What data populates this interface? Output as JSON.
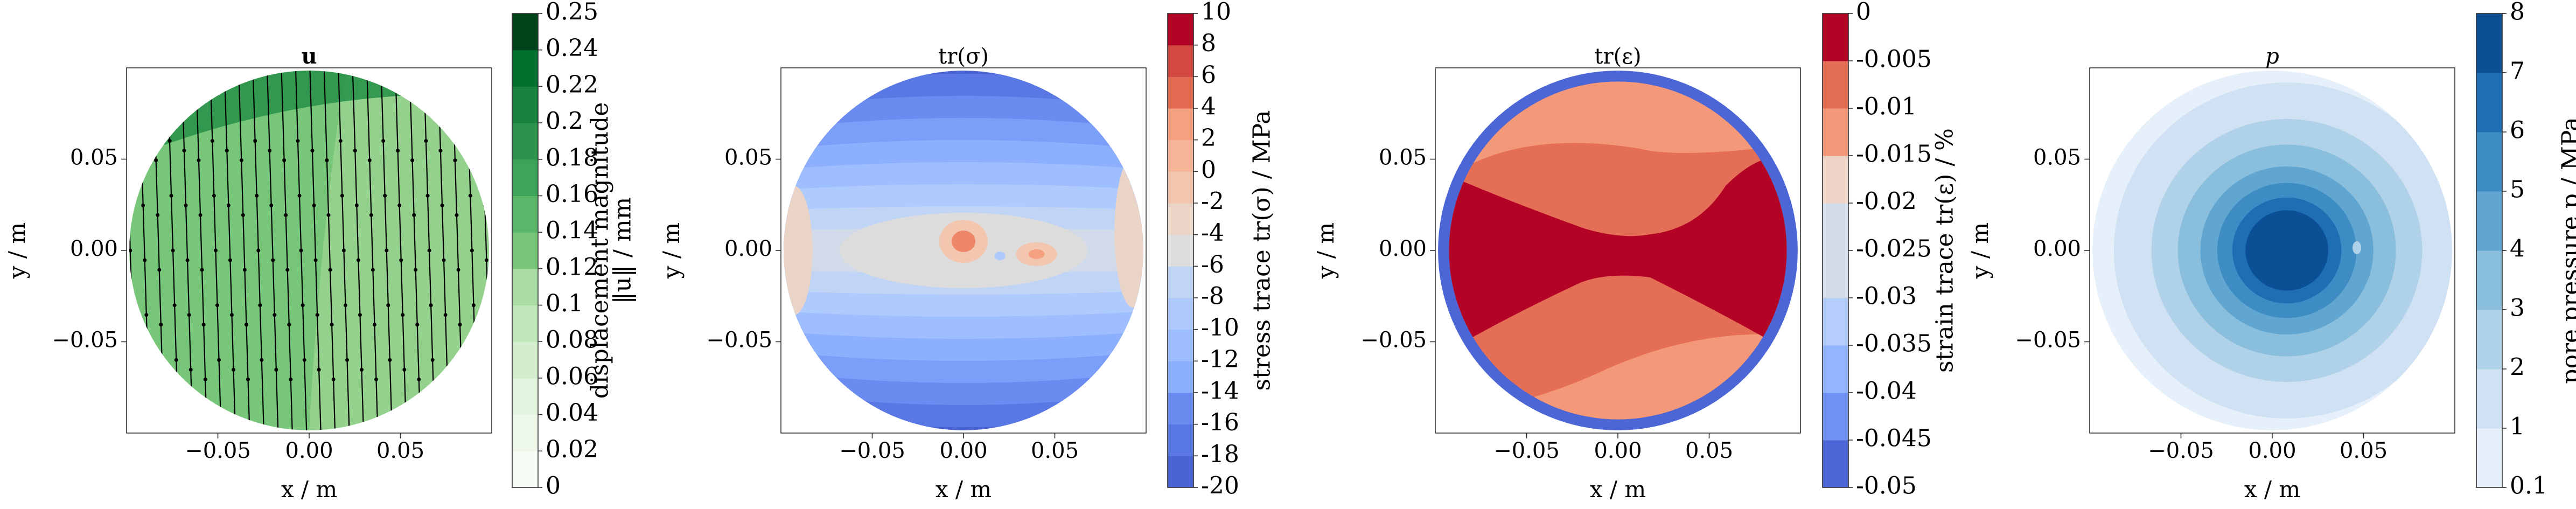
{
  "chart_data": [
    {
      "type": "heatmap",
      "title": "u",
      "xlabel": "x / m",
      "ylabel": "y / m",
      "xticks": [
        -0.05,
        0.0,
        0.05
      ],
      "xtick_labels": [
        "−0.05",
        "0.00",
        "0.05"
      ],
      "yticks": [
        0.05,
        0.0,
        -0.05
      ],
      "ytick_labels": [
        "0.05",
        "0.00",
        "−0.05"
      ],
      "xlim": [
        -0.1,
        0.1
      ],
      "ylim": [
        -0.1,
        0.1
      ],
      "colorbar": {
        "label": "displacement magnitude ‖u‖ / mm",
        "label_parts": [
          "displacement magnitude",
          "‖u‖ / mm"
        ],
        "levels": [
          0,
          0.02,
          0.04,
          0.06,
          0.08,
          0.1,
          0.12,
          0.14,
          0.16,
          0.18,
          0.2,
          0.22,
          0.24,
          0.25
        ],
        "tick_labels": [
          "0",
          "0.02",
          "0.04",
          "0.06",
          "0.08",
          "0.1",
          "0.12",
          "0.14",
          "0.16",
          "0.18",
          "0.2",
          "0.22",
          "0.24",
          "0.25"
        ],
        "colormap": "Greens",
        "colors": [
          "#f7fcf5",
          "#eef8ea",
          "#e3f4de",
          "#d3eecd",
          "#c0e6b9",
          "#aadda4",
          "#93d18d",
          "#78c67a",
          "#5cb66a",
          "#3fa459",
          "#2a924a",
          "#17813d",
          "#04702f",
          "#00441b"
        ]
      },
      "field_levels_present": [
        0.14,
        0.16
      ],
      "arrows": "vertical displacement vectors (quiver), black"
    },
    {
      "type": "heatmap",
      "title": "tr(σ)",
      "xlabel": "x / m",
      "ylabel": "y / m",
      "xticks": [
        -0.05,
        0.0,
        0.05
      ],
      "xtick_labels": [
        "−0.05",
        "0.00",
        "0.05"
      ],
      "yticks": [
        0.05,
        0.0,
        -0.05
      ],
      "ytick_labels": [
        "0.05",
        "0.00",
        "−0.05"
      ],
      "xlim": [
        -0.1,
        0.1
      ],
      "ylim": [
        -0.1,
        0.1
      ],
      "colorbar": {
        "label": "stress trace tr(σ) / MPa",
        "levels": [
          -20,
          -18,
          -16,
          -14,
          -12,
          -10,
          -8,
          -6,
          -4,
          -2,
          0,
          2,
          4,
          6,
          8,
          10
        ],
        "tick_labels": [
          "-20",
          "-18",
          "-16",
          "-14",
          "-12",
          "-10",
          "-8",
          "-6",
          "-4",
          "-2",
          "0",
          "2",
          "4",
          "6",
          "8",
          "10"
        ],
        "colormap": "coolwarm",
        "colors": [
          "#4a63d3",
          "#5a78e4",
          "#6a8bef",
          "#7b9ff9",
          "#8db0fe",
          "#9ebeff",
          "#afcafc",
          "#c0d4f5",
          "#d1dae9",
          "#dddcdc",
          "#ead4c8",
          "#f3c6b0",
          "#f7b597",
          "#f5a081",
          "#ee8669",
          "#e26952",
          "#d1493f",
          "#b40426"
        ]
      },
      "field_range": [
        -20,
        2
      ]
    },
    {
      "type": "heatmap",
      "title": "tr(ε)",
      "xlabel": "x / m",
      "ylabel": "y / m",
      "xticks": [
        -0.05,
        0.0,
        0.05
      ],
      "xtick_labels": [
        "−0.05",
        "0.00",
        "0.05"
      ],
      "yticks": [
        0.05,
        0.0,
        -0.05
      ],
      "ytick_labels": [
        "0.05",
        "0.00",
        "−0.05"
      ],
      "xlim": [
        -0.1,
        0.1
      ],
      "ylim": [
        -0.1,
        0.1
      ],
      "colorbar": {
        "label": "strain trace tr(ε) / %",
        "levels": [
          -0.05,
          -0.045,
          -0.04,
          -0.035,
          -0.03,
          -0.025,
          -0.02,
          -0.015,
          -0.01,
          -0.005,
          0
        ],
        "tick_labels": [
          "-0.05",
          "-0.045",
          "-0.04",
          "-0.035",
          "-0.03",
          "-0.025",
          "-0.02",
          "-0.015",
          "-0.01",
          "-0.005",
          "0"
        ],
        "colormap": "coolwarm",
        "colors": [
          "#4c66d6",
          "#6f92f3",
          "#93b5fe",
          "#b5cdfa",
          "#d2dbe8",
          "#ecd3c5",
          "#f4987a",
          "#e46e56",
          "#b40426"
        ]
      },
      "field_levels_present": [
        -0.05,
        -0.015,
        -0.01,
        -0.005
      ]
    },
    {
      "type": "heatmap",
      "title": "p",
      "xlabel": "x / m",
      "ylabel": "y / m",
      "xticks": [
        -0.05,
        0.0,
        0.05
      ],
      "xtick_labels": [
        "−0.05",
        "0.00",
        "0.05"
      ],
      "yticks": [
        0.05,
        0.0,
        -0.05
      ],
      "ytick_labels": [
        "0.05",
        "0.00",
        "−0.05"
      ],
      "xlim": [
        -0.1,
        0.1
      ],
      "ylim": [
        -0.1,
        0.1
      ],
      "colorbar": {
        "label": "pore pressure p / MPa",
        "levels": [
          0.1,
          1,
          2,
          3,
          4,
          5,
          6,
          7,
          8
        ],
        "tick_labels": [
          "0.1",
          "1",
          "2",
          "3",
          "4",
          "5",
          "6",
          "7",
          "8"
        ],
        "colormap": "Blues",
        "colors": [
          "#e6f0fa",
          "#cfe1f2",
          "#b0d2e8",
          "#89bedc",
          "#60a6d1",
          "#3d8dc4",
          "#1f6eb3",
          "#0b4f94"
        ]
      },
      "center": [
        0.008,
        0.0
      ]
    }
  ]
}
